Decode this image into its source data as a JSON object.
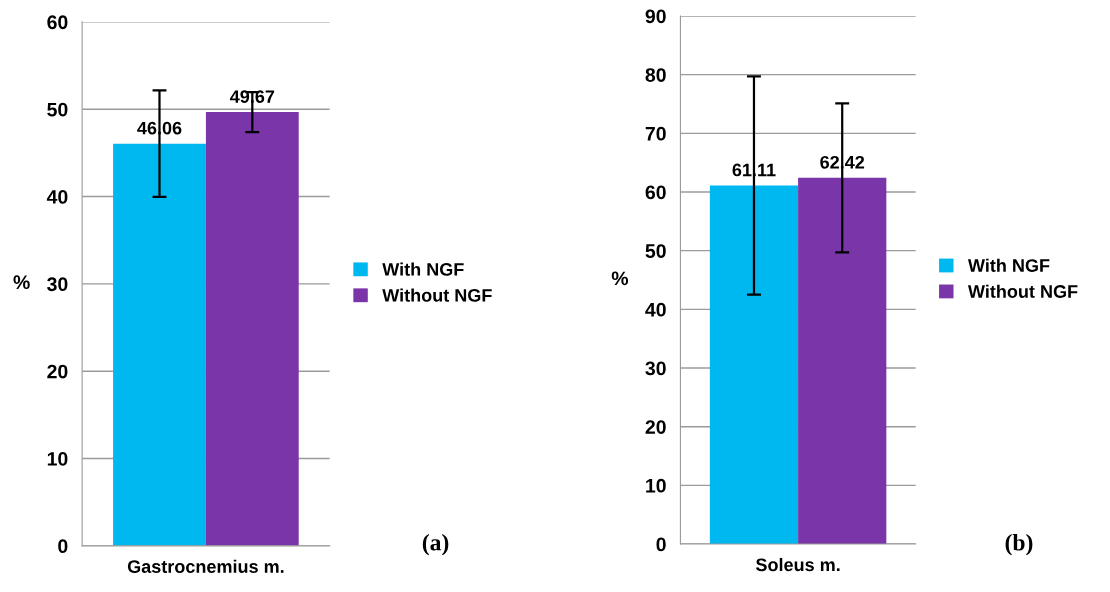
{
  "chart_data": [
    {
      "type": "bar",
      "categories": [
        "Gastrocnemius m."
      ],
      "ylabel": "%",
      "ylim": [
        0,
        60
      ],
      "yticks": [
        0,
        10,
        20,
        30,
        40,
        50,
        60
      ],
      "grid": "y",
      "legend": "right",
      "data_labels": true,
      "annotations": [
        "(a)"
      ],
      "series": [
        {
          "name": "With NGF",
          "color": "#00b8f0",
          "values": [
            46.06
          ],
          "errors": [
            6.1
          ]
        },
        {
          "name": "Without NGF",
          "color": "#7a35a8",
          "values": [
            49.67
          ],
          "errors": [
            2.3
          ]
        }
      ]
    },
    {
      "type": "bar",
      "categories": [
        "Soleus m."
      ],
      "ylabel": "%",
      "ylim": [
        0,
        90
      ],
      "yticks": [
        0,
        10,
        20,
        30,
        40,
        50,
        60,
        70,
        80,
        90
      ],
      "grid": "y",
      "legend": "right",
      "data_labels": true,
      "annotations": [
        "(b)"
      ],
      "series": [
        {
          "name": "With NGF",
          "color": "#00b8f0",
          "values": [
            61.11
          ],
          "errors": [
            18.6
          ]
        },
        {
          "name": "Without NGF",
          "color": "#7a35a8",
          "values": [
            62.42
          ],
          "errors": [
            12.7
          ]
        }
      ]
    }
  ]
}
